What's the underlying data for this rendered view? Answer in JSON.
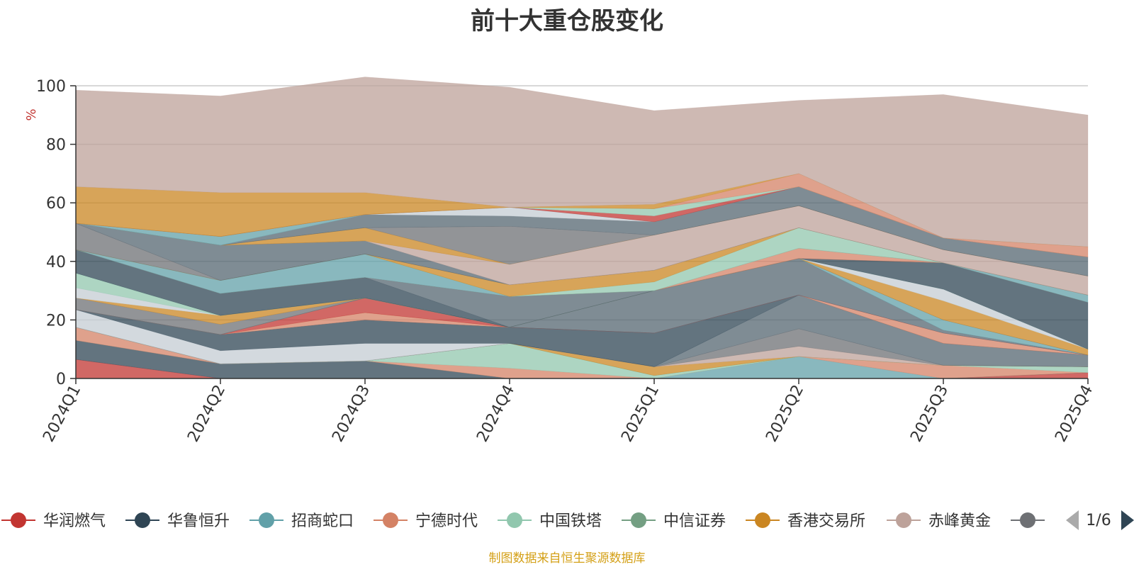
{
  "source_note": "制图数据来自恒生聚源数据库",
  "legend_page": "1/6",
  "chart_data": {
    "type": "area",
    "title": "前十大重仓股变化",
    "ylabel": "%",
    "ylim": [
      0,
      100
    ],
    "yticks": [
      0,
      20,
      40,
      60,
      80,
      100
    ],
    "grid": true,
    "legend_placement": "bottom",
    "categories": [
      "2024Q1",
      "2024Q2",
      "2024Q3",
      "2024Q4",
      "2025Q1",
      "2025Q2",
      "2025Q3",
      "2025Q4"
    ],
    "series": [
      {
        "name": "华润燃气",
        "color": "#c23531",
        "values": [
          6.5,
          0,
          0,
          0,
          0,
          0,
          0,
          2
        ]
      },
      {
        "name": "华鲁恒升",
        "color": "#2f4554",
        "values": [
          6.5,
          5,
          6,
          0,
          0,
          0,
          0,
          0
        ]
      },
      {
        "name": "招商蛇口",
        "color": "#61a0a8",
        "values": [
          0,
          0,
          0,
          0,
          0,
          7.5,
          0,
          0
        ]
      },
      {
        "name": "宁德时代",
        "color": "#d48265",
        "values": [
          4.5,
          0,
          0,
          3.5,
          0,
          0,
          4.5,
          0
        ]
      },
      {
        "name": "中国铁塔",
        "color": "#91c7ae",
        "values": [
          0,
          0,
          0,
          8.5,
          1,
          0,
          0,
          2
        ]
      },
      {
        "name": "中信证券",
        "color": "#749f83",
        "values": [
          0,
          0,
          0,
          0,
          0,
          0,
          0,
          0
        ]
      },
      {
        "name": "香港交易所",
        "color": "#ca8622",
        "values": [
          0,
          0,
          0,
          0,
          3,
          0,
          0,
          0
        ]
      },
      {
        "name": "赤峰黄金",
        "color": "#bda29a",
        "values": [
          0,
          0,
          0,
          0,
          0,
          3.5,
          0,
          0
        ]
      },
      {
        "name": "",
        "color": "#6e7074",
        "values": [
          0,
          0,
          0,
          0,
          0,
          6,
          0,
          0
        ]
      },
      {
        "name": "",
        "color": "#546570",
        "values": [
          0,
          0,
          0,
          0,
          0,
          11.5,
          7.5,
          4
        ]
      },
      {
        "name": "",
        "color": "#c4ccd3",
        "values": [
          6,
          4.5,
          6,
          0,
          0,
          0,
          0,
          0
        ]
      },
      {
        "name": "",
        "color": "#2f4554",
        "values": [
          0,
          5.5,
          8,
          5.5,
          11.5,
          0,
          0,
          0
        ]
      },
      {
        "name": "",
        "color": "#d48265",
        "values": [
          0,
          0,
          2.5,
          0,
          0,
          0,
          3.5,
          0
        ]
      },
      {
        "name": "",
        "color": "#c23531",
        "values": [
          0,
          0,
          5,
          0,
          0,
          0,
          0,
          0
        ]
      },
      {
        "name": "",
        "color": "#546570",
        "values": [
          0,
          0,
          0,
          0,
          14.5,
          12.5,
          1,
          0
        ]
      },
      {
        "name": "",
        "color": "#61a0a8",
        "values": [
          0,
          0,
          0,
          0,
          0,
          0,
          3.5,
          0
        ]
      },
      {
        "name": "",
        "color": "#6e7074",
        "values": [
          4,
          3.5,
          0,
          0,
          0,
          0,
          0,
          0
        ]
      },
      {
        "name": "",
        "color": "#ca8622",
        "values": [
          0,
          3,
          0,
          0,
          0,
          0,
          6.5,
          2
        ]
      },
      {
        "name": "",
        "color": "#c4ccd3",
        "values": [
          3.5,
          0,
          0,
          0,
          0,
          0,
          4,
          0
        ]
      },
      {
        "name": "",
        "color": "#91c7ae",
        "values": [
          5,
          0,
          0,
          0,
          0,
          0,
          0,
          0
        ]
      },
      {
        "name": "",
        "color": "#2f4554",
        "values": [
          8,
          7.5,
          7,
          0,
          0,
          0,
          9,
          16
        ]
      },
      {
        "name": "",
        "color": "#546570",
        "values": [
          0,
          0,
          0,
          10.5,
          0,
          0,
          0,
          0
        ]
      },
      {
        "name": "",
        "color": "#d48265",
        "values": [
          0,
          0,
          0,
          0,
          0,
          3.5,
          0,
          0
        ]
      },
      {
        "name": "",
        "color": "#61a0a8",
        "values": [
          0,
          4.5,
          8,
          0,
          0,
          0,
          0,
          2.5
        ]
      },
      {
        "name": "",
        "color": "#91c7ae",
        "values": [
          0,
          0,
          0,
          0,
          3,
          7,
          0,
          0
        ]
      },
      {
        "name": "",
        "color": "#ca8622",
        "values": [
          0,
          0,
          0,
          4,
          4,
          0,
          0,
          0
        ]
      },
      {
        "name": "",
        "color": "#6e7074",
        "values": [
          9,
          0,
          0,
          0,
          0,
          0,
          0,
          0
        ]
      },
      {
        "name": "",
        "color": "#546570",
        "values": [
          0,
          12,
          4.5,
          0,
          0,
          0,
          0,
          0
        ]
      },
      {
        "name": "",
        "color": "#bda29a",
        "values": [
          0,
          0,
          0,
          7,
          12,
          7.5,
          4.5,
          6.5
        ]
      },
      {
        "name": "",
        "color": "#ca8622",
        "values": [
          0,
          0,
          4.5,
          0,
          0,
          0,
          0,
          0
        ]
      },
      {
        "name": "",
        "color": "#6e7074",
        "values": [
          0,
          0,
          0,
          13,
          0,
          0,
          0,
          0
        ]
      },
      {
        "name": "",
        "color": "#546570",
        "values": [
          0,
          0,
          4.5,
          3.5,
          4.5,
          6.5,
          4,
          6.5
        ]
      },
      {
        "name": "",
        "color": "#c4ccd3",
        "values": [
          0,
          0,
          0,
          3,
          0,
          0,
          0,
          0
        ]
      },
      {
        "name": "",
        "color": "#61a0a8",
        "values": [
          0,
          3,
          0,
          0,
          0,
          0,
          0,
          0
        ]
      },
      {
        "name": "",
        "color": "#c23531",
        "values": [
          0,
          0,
          0,
          0,
          2,
          0,
          0,
          0
        ]
      },
      {
        "name": "",
        "color": "#91c7ae",
        "values": [
          0,
          0,
          0,
          0,
          2.5,
          0,
          0,
          0
        ]
      },
      {
        "name": "",
        "color": "#d48265",
        "values": [
          0,
          0,
          0,
          0,
          0,
          4.5,
          0,
          3.5
        ]
      },
      {
        "name": "",
        "color": "#ca8622",
        "values": [
          12.5,
          15,
          7.5,
          0,
          1.5,
          0,
          0,
          0
        ]
      },
      {
        "name": "",
        "color": "#bda29a",
        "values": [
          33,
          33,
          39.5,
          41,
          32,
          25,
          49,
          45
        ]
      }
    ]
  }
}
